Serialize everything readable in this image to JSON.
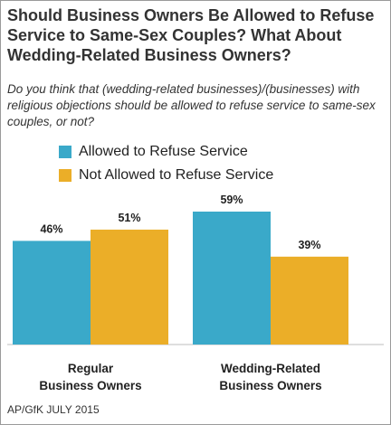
{
  "title": "Should Business Owners Be Allowed to Refuse Service to Same-Sex Couples? What About Wedding-Related Business Owners?",
  "subtitle": "Do you think that (wedding-related businesses)/(businesses) with religious objections should be allowed to refuse service to same-sex couples, or not?",
  "source": "AP/GfK JULY 2015",
  "colors": {
    "allowed": "#3AA9C9",
    "not_allowed": "#EBAE28"
  },
  "chart_data": {
    "type": "bar",
    "categories": [
      [
        "Regular",
        "Business Owners"
      ],
      [
        "Wedding-Related",
        "Business Owners"
      ]
    ],
    "series": [
      {
        "name": "Allowed to Refuse Service",
        "values": [
          46,
          59
        ],
        "labels": [
          "46%",
          "59%"
        ]
      },
      {
        "name": "Not Allowed to Refuse Service",
        "values": [
          51,
          39
        ],
        "labels": [
          "51%",
          "39%"
        ]
      }
    ],
    "ylim": [
      0,
      59
    ],
    "legend": "top-left",
    "grid": false
  }
}
